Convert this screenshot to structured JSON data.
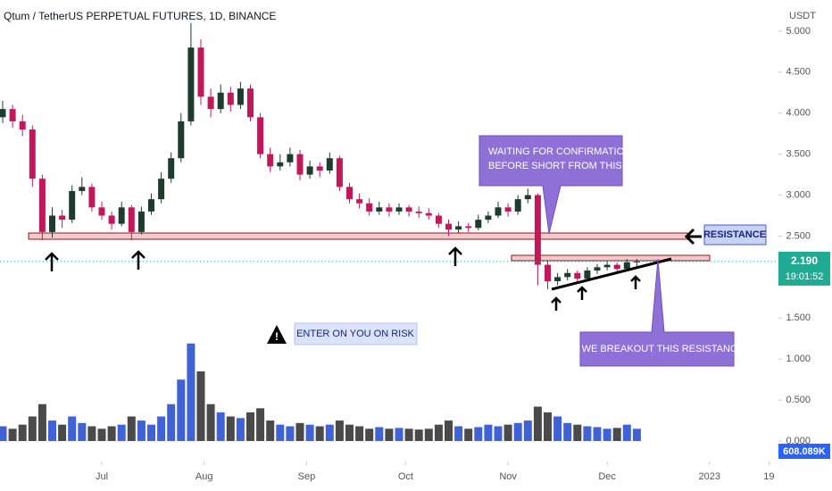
{
  "chart_data": {
    "type": "candlestick",
    "title": "Qtum / TetherUS PERPETUAL FUTURES, 1D, BINANCE",
    "currency": "USDT",
    "up_color": "#1e3b2f",
    "down_color": "#c2185b",
    "volume_up_color": "#3f62d6",
    "volume_down_color": "#4a4a4a",
    "candles": [
      [
        3.95,
        4.15,
        3.88,
        4.05
      ],
      [
        4.05,
        4.1,
        3.82,
        3.9
      ],
      [
        3.9,
        3.98,
        3.72,
        3.8
      ],
      [
        3.8,
        3.85,
        3.1,
        3.2
      ],
      [
        3.2,
        3.25,
        2.45,
        2.55
      ],
      [
        2.55,
        2.85,
        2.48,
        2.75
      ],
      [
        2.75,
        2.82,
        2.6,
        2.7
      ],
      [
        2.7,
        3.12,
        2.66,
        3.05
      ],
      [
        3.05,
        3.22,
        3.0,
        3.1
      ],
      [
        3.1,
        3.14,
        2.8,
        2.85
      ],
      [
        2.85,
        2.92,
        2.7,
        2.75
      ],
      [
        2.75,
        2.8,
        2.58,
        2.65
      ],
      [
        2.65,
        2.92,
        2.62,
        2.85
      ],
      [
        2.85,
        2.88,
        2.45,
        2.55
      ],
      [
        2.55,
        2.86,
        2.52,
        2.8
      ],
      [
        2.8,
        3.02,
        2.76,
        2.95
      ],
      [
        2.95,
        3.28,
        2.9,
        3.2
      ],
      [
        3.2,
        3.52,
        3.15,
        3.45
      ],
      [
        3.45,
        4.0,
        3.4,
        3.9
      ],
      [
        3.9,
        5.1,
        3.85,
        4.8
      ],
      [
        4.8,
        4.9,
        4.1,
        4.2
      ],
      [
        4.2,
        4.3,
        3.95,
        4.05
      ],
      [
        4.05,
        4.35,
        4.0,
        4.25
      ],
      [
        4.25,
        4.32,
        4.02,
        4.1
      ],
      [
        4.1,
        4.38,
        4.05,
        4.3
      ],
      [
        4.3,
        4.35,
        3.9,
        3.95
      ],
      [
        3.95,
        4.0,
        3.45,
        3.5
      ],
      [
        3.5,
        3.58,
        3.28,
        3.35
      ],
      [
        3.35,
        3.5,
        3.3,
        3.4
      ],
      [
        3.4,
        3.58,
        3.35,
        3.5
      ],
      [
        3.5,
        3.55,
        3.18,
        3.25
      ],
      [
        3.25,
        3.42,
        3.2,
        3.35
      ],
      [
        3.35,
        3.4,
        3.22,
        3.3
      ],
      [
        3.3,
        3.52,
        3.26,
        3.45
      ],
      [
        3.45,
        3.48,
        3.05,
        3.1
      ],
      [
        3.1,
        3.15,
        2.9,
        2.95
      ],
      [
        2.95,
        3.02,
        2.84,
        2.9
      ],
      [
        2.9,
        2.96,
        2.75,
        2.8
      ],
      [
        2.8,
        2.92,
        2.76,
        2.85
      ],
      [
        2.85,
        2.9,
        2.74,
        2.8
      ],
      [
        2.8,
        2.9,
        2.76,
        2.85
      ],
      [
        2.85,
        2.88,
        2.74,
        2.8
      ],
      [
        2.8,
        2.86,
        2.72,
        2.78
      ],
      [
        2.78,
        2.84,
        2.7,
        2.75
      ],
      [
        2.75,
        2.78,
        2.6,
        2.65
      ],
      [
        2.65,
        2.7,
        2.5,
        2.58
      ],
      [
        2.58,
        2.68,
        2.54,
        2.62
      ],
      [
        2.62,
        2.66,
        2.55,
        2.6
      ],
      [
        2.6,
        2.76,
        2.57,
        2.7
      ],
      [
        2.7,
        2.8,
        2.66,
        2.75
      ],
      [
        2.75,
        2.92,
        2.72,
        2.85
      ],
      [
        2.85,
        2.9,
        2.74,
        2.8
      ],
      [
        2.8,
        3.0,
        2.76,
        2.95
      ],
      [
        2.95,
        3.08,
        2.9,
        3.0
      ],
      [
        3.0,
        3.02,
        1.9,
        2.15
      ],
      [
        2.15,
        2.2,
        1.85,
        1.95
      ],
      [
        1.95,
        2.05,
        1.9,
        2.0
      ],
      [
        2.0,
        2.1,
        1.96,
        2.05
      ],
      [
        2.05,
        2.08,
        1.94,
        1.98
      ],
      [
        1.98,
        2.12,
        1.95,
        2.08
      ],
      [
        2.08,
        2.16,
        2.04,
        2.12
      ],
      [
        2.12,
        2.2,
        2.08,
        2.15
      ],
      [
        2.15,
        2.18,
        2.06,
        2.1
      ],
      [
        2.1,
        2.22,
        2.08,
        2.18
      ],
      [
        2.18,
        2.22,
        2.12,
        2.19
      ]
    ],
    "volumes": [
      0.18,
      0.15,
      0.2,
      0.3,
      0.45,
      0.25,
      0.2,
      0.3,
      0.22,
      0.18,
      0.15,
      0.18,
      0.2,
      0.3,
      0.25,
      0.2,
      0.3,
      0.45,
      0.75,
      1.19,
      0.85,
      0.45,
      0.35,
      0.3,
      0.28,
      0.35,
      0.4,
      0.25,
      0.2,
      0.18,
      0.22,
      0.2,
      0.18,
      0.2,
      0.25,
      0.2,
      0.18,
      0.15,
      0.17,
      0.15,
      0.16,
      0.15,
      0.14,
      0.15,
      0.2,
      0.25,
      0.18,
      0.15,
      0.17,
      0.2,
      0.18,
      0.2,
      0.22,
      0.25,
      0.42,
      0.35,
      0.3,
      0.22,
      0.2,
      0.18,
      0.17,
      0.15,
      0.16,
      0.2,
      0.15
    ],
    "ylim": [
      -0.25,
      5.38
    ],
    "yticks": [
      {
        "value": 0,
        "label": "0.000"
      },
      {
        "value": 0.5,
        "label": "0.500"
      },
      {
        "value": 1,
        "label": "1.000"
      },
      {
        "value": 1.5,
        "label": "1.500"
      },
      {
        "value": 2.5,
        "label": "2.500"
      },
      {
        "value": 3,
        "label": "3.000"
      },
      {
        "value": 3.5,
        "label": "3.500"
      },
      {
        "value": 4,
        "label": "4.000"
      },
      {
        "value": 4.5,
        "label": "4.500"
      },
      {
        "value": 5,
        "label": "5.000"
      }
    ],
    "xticks": [
      {
        "value": 10,
        "label": "Jul"
      },
      {
        "value": 20.33,
        "label": "Aug"
      },
      {
        "value": 30.67,
        "label": "Sep"
      },
      {
        "value": 40.67,
        "label": "Oct"
      },
      {
        "value": 51,
        "label": "Nov"
      },
      {
        "value": 61,
        "label": "Dec"
      },
      {
        "value": 71.33,
        "label": "2023"
      },
      {
        "value": 77.33,
        "label": "19"
      }
    ],
    "last_price": {
      "value": 2.19,
      "label": "2.190"
    },
    "countdown": "19:01:52",
    "volume_label": "608.089K",
    "annotations": {
      "confirmation": [
        "WAITING FOR CONFIRMATION",
        "BEFORE SHORT FROM THIS ZONE"
      ],
      "resistance": "RESISTANCE",
      "risk": "ENTER ON YOU ON RISK",
      "breakout": "IF WE BREAKOUT THIS RESISTANCE"
    }
  }
}
